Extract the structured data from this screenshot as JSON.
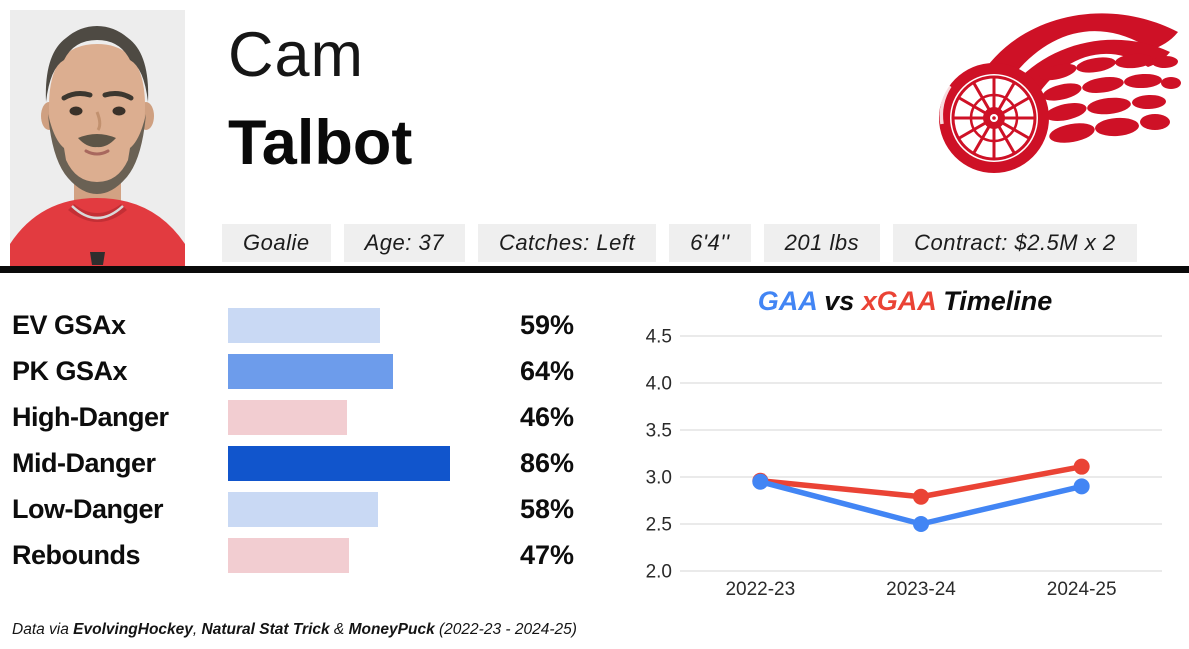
{
  "player": {
    "first_name": "Cam",
    "last_name": "Talbot",
    "photo_icon": "goalie-headshot-photo",
    "team_logo_icon": "detroit-red-wings-winged-wheel-logo"
  },
  "badges": [
    "Goalie",
    "Age: 37",
    "Catches: Left",
    "6'4''",
    "201 lbs",
    "Contract: $2.5M x 2"
  ],
  "chart_data": [
    {
      "type": "bar",
      "orientation": "horizontal",
      "categories": [
        "EV GSAx",
        "PK GSAx",
        "High-Danger",
        "Mid-Danger",
        "Low-Danger",
        "Rebounds"
      ],
      "values": [
        59,
        64,
        46,
        86,
        58,
        47
      ],
      "unit": "%",
      "value_labels": [
        "59%",
        "64%",
        "46%",
        "86%",
        "58%",
        "47%"
      ],
      "bar_colors": [
        "#c9d9f4",
        "#6d9ceb",
        "#f2cdd1",
        "#1155cc",
        "#c9d9f4",
        "#f2cdd1"
      ],
      "xlim": [
        0,
        100
      ],
      "grid": false,
      "legend": "none"
    },
    {
      "type": "line",
      "title": "GAA vs xGAA Timeline",
      "title_parts": [
        {
          "text": "GAA",
          "color": "#4285f4"
        },
        {
          "text": " vs ",
          "color": "#0d0d0d"
        },
        {
          "text": "xGAA",
          "color": "#ea4335"
        },
        {
          "text": " Timeline",
          "color": "#0d0d0d"
        }
      ],
      "categories": [
        "2022-23",
        "2023-24",
        "2024-25"
      ],
      "series": [
        {
          "name": "GAA",
          "color": "#4285f4",
          "values": [
            2.95,
            2.5,
            2.9
          ]
        },
        {
          "name": "xGAA",
          "color": "#ea4335",
          "values": [
            2.96,
            2.79,
            3.11
          ]
        }
      ],
      "ylim": [
        2.0,
        4.5
      ],
      "yticks": [
        2.0,
        2.5,
        3.0,
        3.5,
        4.0,
        4.5
      ],
      "grid": true,
      "legend": "colors-in-title"
    }
  ],
  "footer": {
    "text": "Data via EvolvingHockey, Natural Stat Trick & MoneyPuck (2022-23 - 2024-25)",
    "parts": [
      {
        "text": "Data via ",
        "bold": false
      },
      {
        "text": "EvolvingHockey",
        "bold": true
      },
      {
        "text": ", ",
        "bold": false
      },
      {
        "text": "Natural Stat Trick",
        "bold": true
      },
      {
        "text": " & ",
        "bold": false
      },
      {
        "text": "MoneyPuck",
        "bold": true
      },
      {
        "text": " (2022-23 - 2024-25)",
        "bold": false
      }
    ]
  },
  "colors": {
    "team_red": "#ce1126",
    "divider": "#0a0a0a",
    "badge_bg": "#efefef",
    "gridline": "#e3e3e3"
  }
}
